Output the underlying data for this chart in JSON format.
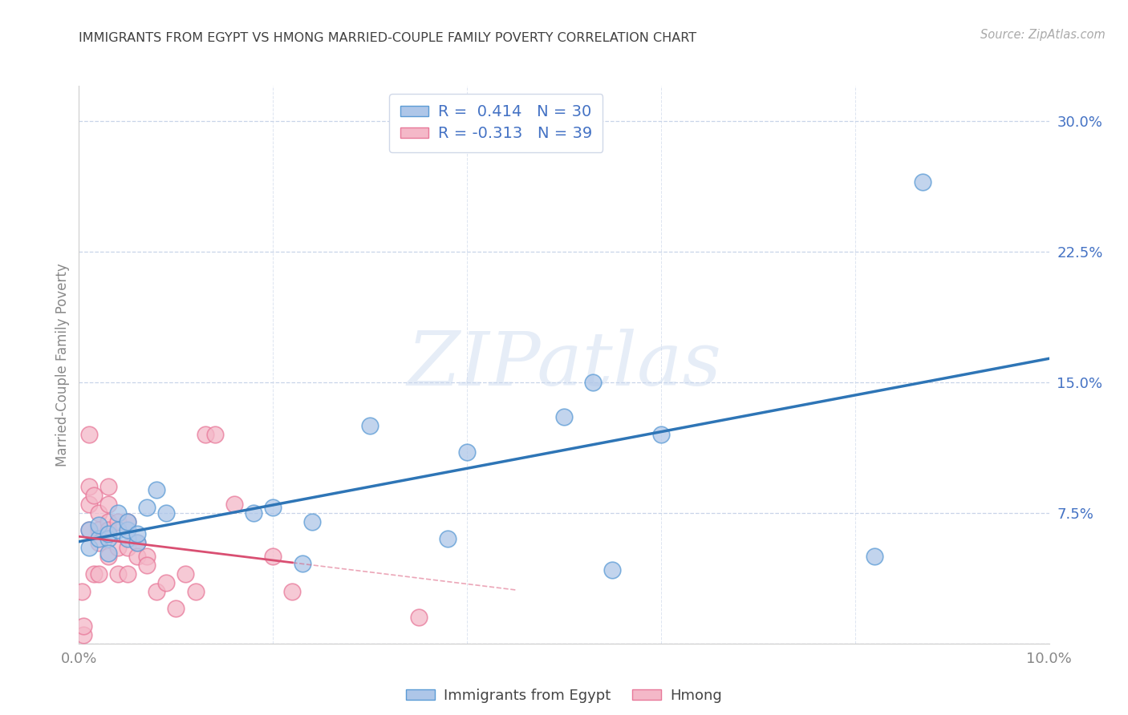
{
  "title": "IMMIGRANTS FROM EGYPT VS HMONG MARRIED-COUPLE FAMILY POVERTY CORRELATION CHART",
  "source": "Source: ZipAtlas.com",
  "ylabel": "Married-Couple Family Poverty",
  "xlim": [
    0.0,
    0.1
  ],
  "ylim": [
    0.0,
    0.32
  ],
  "yticks_right": [
    0.0,
    0.075,
    0.15,
    0.225,
    0.3
  ],
  "yticklabels_right": [
    "",
    "7.5%",
    "15.0%",
    "22.5%",
    "30.0%"
  ],
  "egypt_R": 0.414,
  "egypt_N": 30,
  "hmong_R": -0.313,
  "hmong_N": 39,
  "egypt_color": "#aec6e8",
  "egypt_edge_color": "#5b9bd5",
  "egypt_line_color": "#2e75b6",
  "hmong_color": "#f4b8c8",
  "hmong_edge_color": "#e8799a",
  "hmong_line_color": "#d94f72",
  "watermark": "ZIPatlas",
  "egypt_x": [
    0.001,
    0.001,
    0.002,
    0.002,
    0.003,
    0.003,
    0.003,
    0.004,
    0.004,
    0.005,
    0.005,
    0.005,
    0.006,
    0.006,
    0.007,
    0.008,
    0.009,
    0.018,
    0.02,
    0.023,
    0.024,
    0.03,
    0.038,
    0.04,
    0.05,
    0.053,
    0.055,
    0.06,
    0.082,
    0.087
  ],
  "egypt_y": [
    0.055,
    0.065,
    0.06,
    0.068,
    0.06,
    0.063,
    0.052,
    0.065,
    0.075,
    0.06,
    0.065,
    0.07,
    0.058,
    0.063,
    0.078,
    0.088,
    0.075,
    0.075,
    0.078,
    0.046,
    0.07,
    0.125,
    0.06,
    0.11,
    0.13,
    0.15,
    0.042,
    0.12,
    0.05,
    0.265
  ],
  "hmong_x": [
    0.0003,
    0.0005,
    0.0005,
    0.001,
    0.001,
    0.001,
    0.001,
    0.0015,
    0.0015,
    0.002,
    0.002,
    0.002,
    0.002,
    0.003,
    0.003,
    0.003,
    0.003,
    0.003,
    0.004,
    0.004,
    0.004,
    0.005,
    0.005,
    0.005,
    0.006,
    0.006,
    0.007,
    0.007,
    0.008,
    0.009,
    0.01,
    0.011,
    0.012,
    0.013,
    0.014,
    0.016,
    0.02,
    0.022,
    0.035
  ],
  "hmong_y": [
    0.03,
    0.005,
    0.01,
    0.12,
    0.09,
    0.08,
    0.065,
    0.085,
    0.04,
    0.075,
    0.065,
    0.058,
    0.04,
    0.09,
    0.08,
    0.07,
    0.065,
    0.05,
    0.07,
    0.055,
    0.04,
    0.07,
    0.055,
    0.04,
    0.058,
    0.05,
    0.05,
    0.045,
    0.03,
    0.035,
    0.02,
    0.04,
    0.03,
    0.12,
    0.12,
    0.08,
    0.05,
    0.03,
    0.015
  ],
  "background_color": "#ffffff",
  "grid_color": "#c8d4e8",
  "title_color": "#404040",
  "axis_label_color": "#4472c4",
  "axis_tick_color": "#888888"
}
